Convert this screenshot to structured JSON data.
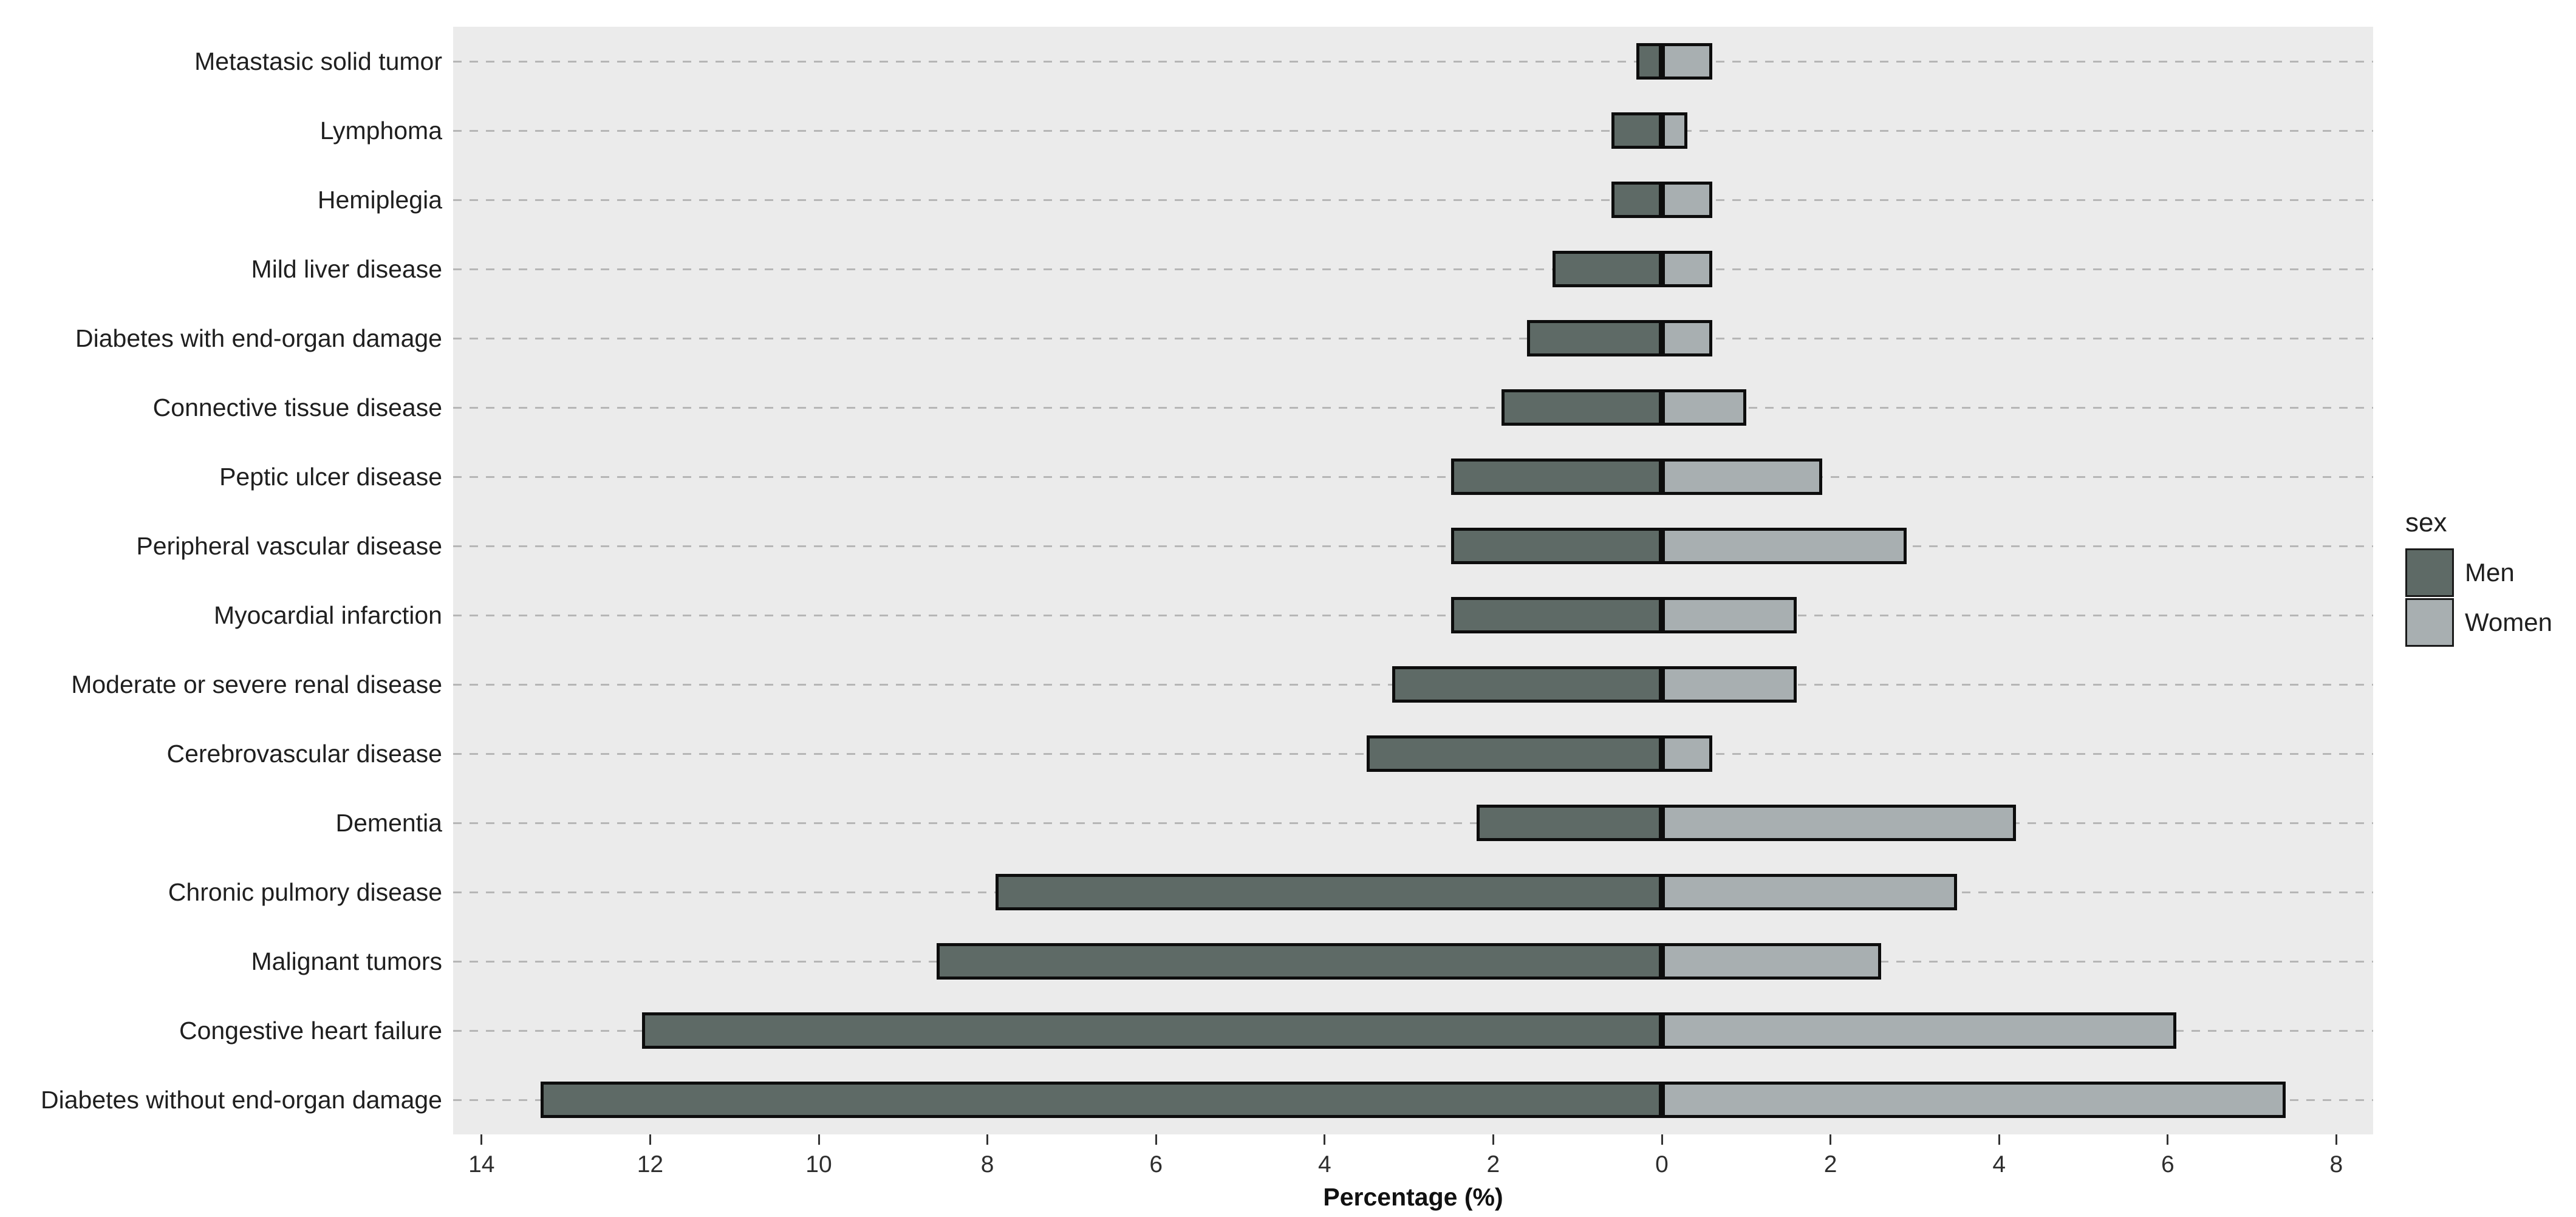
{
  "figure": {
    "xlabel": "Percentage (%)",
    "legend": {
      "title": "sex",
      "items": [
        {
          "label": "Men",
          "color": "#5e6a66"
        },
        {
          "label": "Women",
          "color": "#a8afb1"
        }
      ]
    }
  },
  "colors": {
    "men_fill": "#5e6a66",
    "women_fill": "#a8afb1",
    "panel_background": "#ebebeb",
    "bar_border": "#0d0d0d",
    "gridline": "#b6b6b6",
    "axis_text": "#2e2e2e"
  },
  "chart_data": {
    "type": "bar",
    "subtype": "diverging-horizontal-pyramid",
    "title": "",
    "xlabel": "Percentage (%)",
    "ylabel": "",
    "grid": "horizontal dashed",
    "legend_position": "right",
    "legend_title": "sex",
    "categories": [
      "Metastasic solid tumor",
      "Lymphoma",
      "Hemiplegia",
      "Mild liver disease",
      "Diabetes with end-organ damage",
      "Connective tissue disease",
      "Peptic ulcer disease",
      "Peripheral vascular disease",
      "Myocardial infarction",
      "Moderate or severe renal disease",
      "Cerebrovascular disease",
      "Dementia",
      "Chronic pulmory disease",
      "Malignant tumors",
      "Congestive heart failure",
      "Diabetes without end-organ damage"
    ],
    "series": [
      {
        "name": "Men",
        "direction": "left",
        "color": "#5e6a66",
        "values": [
          0.3,
          0.6,
          0.6,
          1.3,
          1.6,
          1.9,
          2.5,
          2.5,
          2.5,
          3.2,
          3.5,
          2.2,
          7.9,
          8.6,
          12.1,
          13.3
        ]
      },
      {
        "name": "Women",
        "direction": "right",
        "color": "#a8afb1",
        "values": [
          0.6,
          0.3,
          0.6,
          0.6,
          0.6,
          1.0,
          1.9,
          2.9,
          1.6,
          1.6,
          0.6,
          4.2,
          3.5,
          2.6,
          6.1,
          7.4
        ]
      }
    ],
    "x_ticks": {
      "positions": [
        -14,
        -12,
        -10,
        -8,
        -6,
        -4,
        -2,
        0,
        2,
        4,
        6,
        8
      ],
      "labels": [
        "14",
        "12",
        "10",
        "8",
        "6",
        "4",
        "2",
        "0",
        "2",
        "4",
        "6",
        "8"
      ]
    },
    "xlim": [
      -14.34,
      8.44
    ]
  }
}
